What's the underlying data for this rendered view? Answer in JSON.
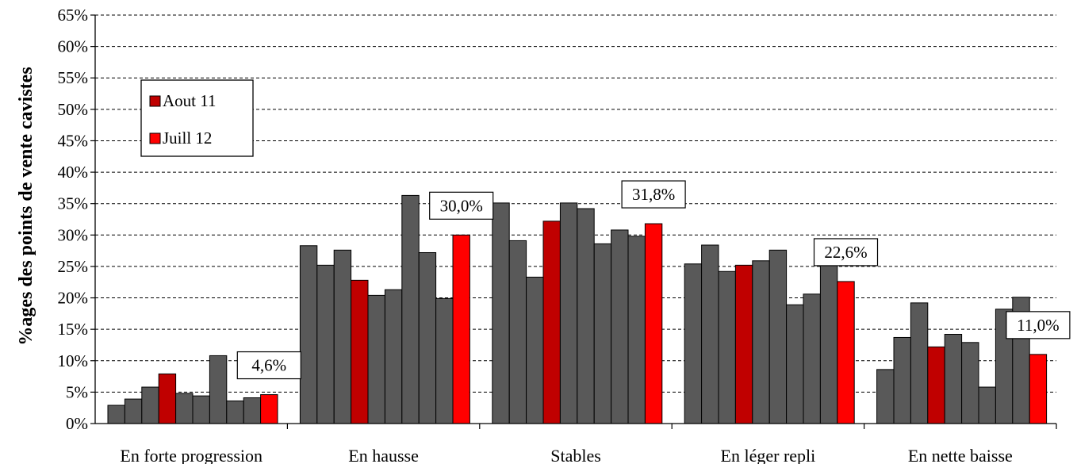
{
  "chart_data": {
    "type": "bar",
    "title": "",
    "xlabel": "",
    "ylabel": "%ages des points de vente cavistes",
    "ylim": [
      0,
      65
    ],
    "ytick_step": 5,
    "yticks": [
      "0%",
      "5%",
      "10%",
      "15%",
      "20%",
      "25%",
      "30%",
      "35%",
      "40%",
      "45%",
      "50%",
      "55%",
      "60%",
      "65%"
    ],
    "grid": true,
    "legend_position": "top-left",
    "categories": [
      "En forte progression",
      "En hausse",
      "Stables",
      "En léger repli",
      "En nette baisse"
    ],
    "colors": {
      "other": "#595959",
      "Aout 11": "#c00000",
      "Juill 12": "#ff0000"
    },
    "legend": [
      {
        "name": "Aout 11",
        "color": "#c00000"
      },
      {
        "name": "Juill 12",
        "color": "#ff0000"
      }
    ],
    "series_per_category": [
      {
        "values": [
          2.9,
          3.9,
          5.8,
          7.9,
          4.8,
          4.4,
          10.8,
          3.6,
          4.1,
          4.6
        ],
        "highlight": [
          null,
          null,
          null,
          "Aout 11",
          null,
          null,
          null,
          null,
          null,
          "Juill 12"
        ]
      },
      {
        "values": [
          28.3,
          25.2,
          27.6,
          22.8,
          20.4,
          21.3,
          36.3,
          27.2,
          19.9,
          30.0
        ],
        "highlight": [
          null,
          null,
          null,
          "Aout 11",
          null,
          null,
          null,
          null,
          null,
          "Juill 12"
        ]
      },
      {
        "values": [
          35.1,
          29.1,
          23.3,
          32.2,
          35.1,
          34.2,
          28.6,
          30.8,
          29.8,
          31.8
        ],
        "highlight": [
          null,
          null,
          null,
          "Aout 11",
          null,
          null,
          null,
          null,
          null,
          "Juill 12"
        ]
      },
      {
        "values": [
          25.4,
          28.4,
          24.2,
          25.2,
          25.9,
          27.6,
          18.9,
          20.6,
          26.7,
          22.6
        ],
        "highlight": [
          null,
          null,
          null,
          "Aout 11",
          null,
          null,
          null,
          null,
          null,
          "Juill 12"
        ]
      },
      {
        "values": [
          8.6,
          13.7,
          19.2,
          12.2,
          14.2,
          12.9,
          5.8,
          18.2,
          20.1,
          11.0
        ],
        "highlight": [
          null,
          null,
          null,
          "Aout 11",
          null,
          null,
          null,
          null,
          null,
          "Juill 12"
        ]
      }
    ],
    "data_labels": [
      "4,6%",
      "30,0%",
      "31,8%",
      "22,6%",
      "11,0%"
    ]
  }
}
